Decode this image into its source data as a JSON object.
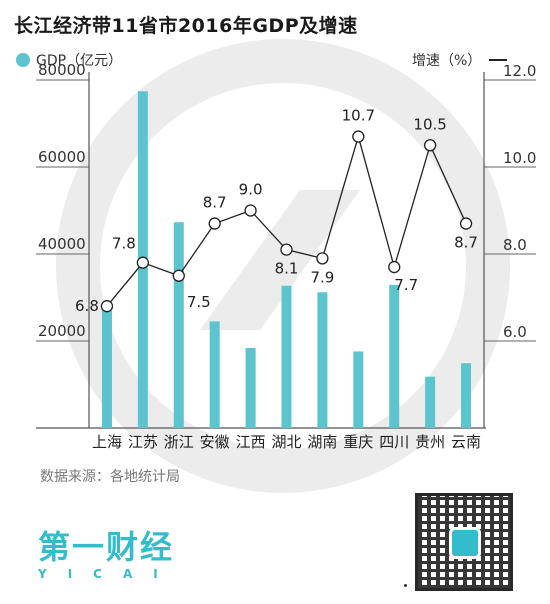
{
  "header": {
    "title": "长江经济带11省市2016年GDP及增速"
  },
  "legend": {
    "left_label": "GDP（亿元）",
    "right_label": "增速（%）"
  },
  "source": "数据来源：各地统计局",
  "logo": {
    "main": "第一财经",
    "sub": "YICAI"
  },
  "colors": {
    "bar": "#5bc4cf",
    "line": "#222222",
    "watermark": "#ececec"
  },
  "chart_data": {
    "type": "bar",
    "categories": [
      "上海",
      "江苏",
      "浙江",
      "安徽",
      "江西",
      "湖北",
      "湖南",
      "重庆",
      "四川",
      "贵州",
      "云南"
    ],
    "series": [
      {
        "name": "GDP（亿元）",
        "type": "bar",
        "axis": "left",
        "values": [
          28200,
          77400,
          47300,
          24500,
          18400,
          32700,
          31200,
          17600,
          32900,
          11800,
          14900
        ]
      },
      {
        "name": "增速（%）",
        "type": "line",
        "axis": "right",
        "values": [
          6.8,
          7.8,
          7.5,
          8.7,
          9.0,
          8.1,
          7.9,
          10.7,
          7.7,
          10.5,
          8.7
        ],
        "labels": [
          "6.8",
          "7.8",
          "7.5",
          "8.7",
          "9.0",
          "8.1",
          "7.9",
          "10.7",
          "7.7",
          "10.5",
          "8.7"
        ]
      }
    ],
    "left_axis": {
      "ylim": [
        0,
        80000
      ],
      "ticks": [
        20000,
        40000,
        60000,
        80000
      ],
      "tick_labels": [
        "20000",
        "40000",
        "60000",
        "80000"
      ]
    },
    "right_axis": {
      "ylim": [
        4.0,
        12.0
      ],
      "ticks": [
        6.0,
        8.0,
        10.0,
        12.0
      ],
      "tick_labels": [
        "6.0",
        "8.0",
        "10.0",
        "12.0"
      ]
    },
    "grid": false,
    "legend": "top"
  }
}
